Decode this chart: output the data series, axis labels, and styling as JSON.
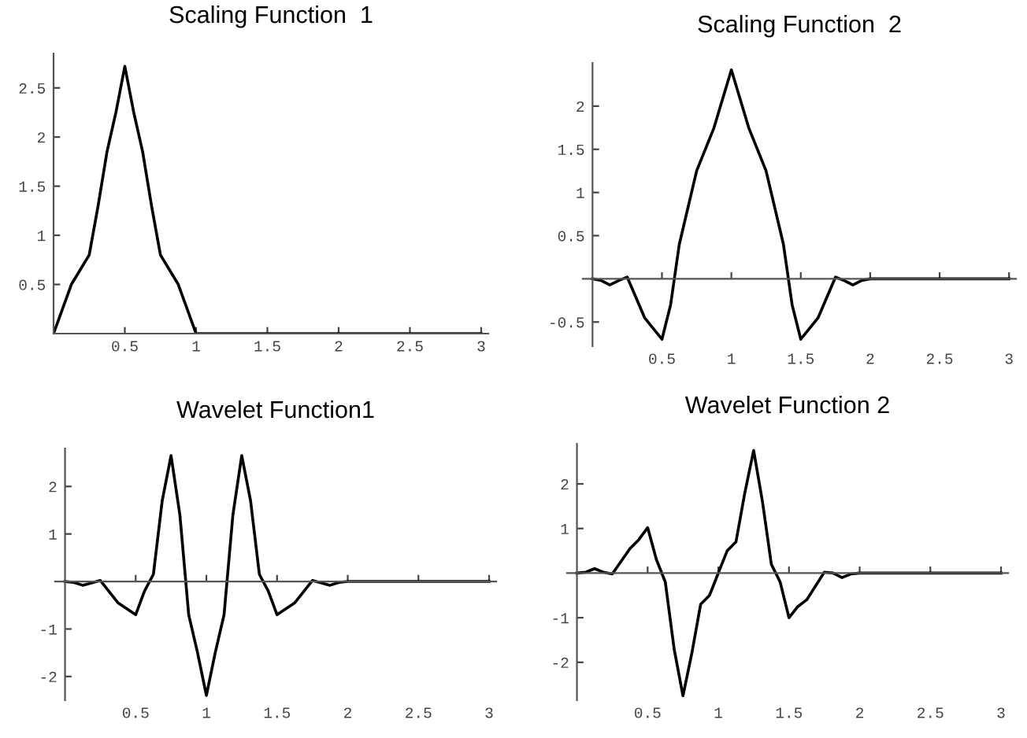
{
  "chart_data": [
    {
      "type": "line",
      "title": "Scaling Function  1",
      "x": [
        0,
        0.125,
        0.1875,
        0.25,
        0.3125,
        0.375,
        0.4375,
        0.5,
        0.5625,
        0.625,
        0.6875,
        0.75,
        0.8125,
        0.875,
        1,
        3
      ],
      "series": [
        {
          "color": "#000000",
          "values": [
            0,
            0.5,
            0.65,
            0.8,
            1.3,
            1.85,
            2.25,
            2.72,
            2.25,
            1.85,
            1.3,
            0.8,
            0.65,
            0.5,
            0,
            0
          ]
        }
      ],
      "xlim": [
        0,
        3.05
      ],
      "ylim": [
        0,
        2.85
      ],
      "xticks": [
        0.5,
        1,
        1.5,
        2,
        2.5,
        3
      ],
      "yticks": [
        0.5,
        1,
        1.5,
        2,
        2.5
      ],
      "grid": false,
      "legend": false
    },
    {
      "type": "line",
      "title": "Scaling Function  2",
      "x": [
        0,
        0.0625,
        0.125,
        0.1875,
        0.25,
        0.375,
        0.5,
        0.5625,
        0.625,
        0.75,
        0.875,
        1,
        1.125,
        1.25,
        1.375,
        1.4375,
        1.5,
        1.625,
        1.75,
        1.8125,
        1.875,
        1.9375,
        2,
        3
      ],
      "series": [
        {
          "color": "#000000",
          "values": [
            0,
            -0.02,
            -0.07,
            -0.02,
            0.02,
            -0.45,
            -0.7,
            -0.3,
            0.4,
            1.25,
            1.75,
            2.42,
            1.75,
            1.25,
            0.4,
            -0.3,
            -0.7,
            -0.45,
            0.02,
            -0.02,
            -0.07,
            -0.02,
            0,
            0
          ]
        }
      ],
      "xlim": [
        -0.07,
        3.05
      ],
      "ylim": [
        -0.78,
        2.5
      ],
      "xticks": [
        0.5,
        1,
        1.5,
        2,
        2.5,
        3
      ],
      "yticks": [
        -0.5,
        0.5,
        1,
        1.5,
        2
      ],
      "grid": false,
      "legend": false
    },
    {
      "type": "line",
      "title": "Wavelet Function1",
      "x": [
        0,
        0.0625,
        0.125,
        0.25,
        0.375,
        0.5,
        0.5625,
        0.625,
        0.6875,
        0.75,
        0.8125,
        0.875,
        0.9375,
        1,
        1.0625,
        1.125,
        1.1875,
        1.25,
        1.3125,
        1.375,
        1.4375,
        1.5,
        1.625,
        1.75,
        1.875,
        1.9375,
        2,
        3
      ],
      "series": [
        {
          "color": "#000000",
          "values": [
            0,
            -0.02,
            -0.08,
            0.02,
            -0.45,
            -0.7,
            -0.2,
            0.15,
            1.7,
            2.65,
            1.4,
            -0.7,
            -1.5,
            -2.4,
            -1.5,
            -0.7,
            1.4,
            2.65,
            1.7,
            0.15,
            -0.2,
            -0.7,
            -0.45,
            0.02,
            -0.08,
            -0.02,
            0,
            0
          ]
        }
      ],
      "xlim": [
        -0.07,
        3.05
      ],
      "ylim": [
        -2.5,
        2.8
      ],
      "xticks": [
        0.5,
        1,
        1.5,
        2,
        2.5,
        3
      ],
      "yticks": [
        -2,
        -1,
        1,
        2
      ],
      "grid": false,
      "legend": false
    },
    {
      "type": "line",
      "title": "Wavelet Function 2",
      "x": [
        0,
        0.0625,
        0.125,
        0.1875,
        0.25,
        0.375,
        0.4375,
        0.5,
        0.5625,
        0.625,
        0.6875,
        0.75,
        0.8125,
        0.875,
        0.9375,
        1,
        1.0625,
        1.125,
        1.1875,
        1.25,
        1.3125,
        1.375,
        1.4375,
        1.5,
        1.5625,
        1.625,
        1.75,
        1.8125,
        1.875,
        1.9375,
        2,
        3
      ],
      "series": [
        {
          "color": "#000000",
          "values": [
            0,
            0.02,
            0.1,
            0.02,
            -0.02,
            0.55,
            0.75,
            1.02,
            0.3,
            -0.2,
            -1.7,
            -2.75,
            -1.8,
            -0.7,
            -0.5,
            0,
            0.5,
            0.7,
            1.8,
            2.75,
            1.6,
            0.2,
            -0.2,
            -1.0,
            -0.75,
            -0.6,
            0.02,
            0,
            -0.1,
            -0.02,
            0,
            0
          ]
        }
      ],
      "xlim": [
        -0.07,
        3.05
      ],
      "ylim": [
        -2.85,
        2.9
      ],
      "xticks": [
        0.5,
        1,
        1.5,
        2,
        2.5,
        3
      ],
      "yticks": [
        -2,
        -1,
        1,
        2
      ],
      "grid": false,
      "legend": false
    }
  ]
}
